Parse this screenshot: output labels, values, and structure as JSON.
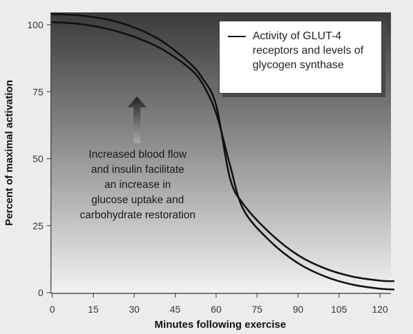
{
  "chart_data": {
    "type": "line",
    "title": "",
    "xlabel": "Minutes following exercise",
    "ylabel": "Percent of maximal activation",
    "xlim": [
      0,
      125
    ],
    "ylim": [
      0,
      100
    ],
    "xticks": [
      0,
      15,
      30,
      45,
      60,
      75,
      90,
      105,
      120
    ],
    "yticks": [
      0,
      25,
      50,
      75,
      100
    ],
    "series": [
      {
        "name": "Activity of GLUT-4 receptors and levels of glycogen synthase",
        "x": [
          0,
          10,
          20,
          30,
          40,
          50,
          55,
          60,
          65,
          70,
          80,
          90,
          100,
          110,
          120,
          125
        ],
        "y": [
          104,
          103.5,
          102,
          99,
          94,
          86,
          80,
          70,
          43,
          33,
          22,
          14,
          9,
          6,
          4.5,
          4.3
        ]
      },
      {
        "name": "Activity of GLUT-4 receptors and levels of glycogen synthase",
        "x": [
          0,
          10,
          20,
          30,
          40,
          50,
          55,
          60,
          65,
          70,
          80,
          90,
          100,
          110,
          120,
          125
        ],
        "y": [
          101,
          100.3,
          98.5,
          95.5,
          91,
          84,
          78,
          67,
          48,
          31,
          19,
          11,
          6,
          3,
          1.5,
          1.2
        ]
      }
    ],
    "legend": {
      "label": "Activity of GLUT-4 receptors and levels of glycogen synthase",
      "position": "top-right"
    },
    "annotation": {
      "lines": [
        "Increased blood flow",
        "and insulin facilitate",
        "an increase in",
        "glucose uptake and",
        "carbohydrate restoration"
      ]
    }
  },
  "colors": {
    "plot_top": "#3a3a3a",
    "plot_bottom": "#f4f4f4",
    "curve": "#111111",
    "background": "#ececec"
  }
}
